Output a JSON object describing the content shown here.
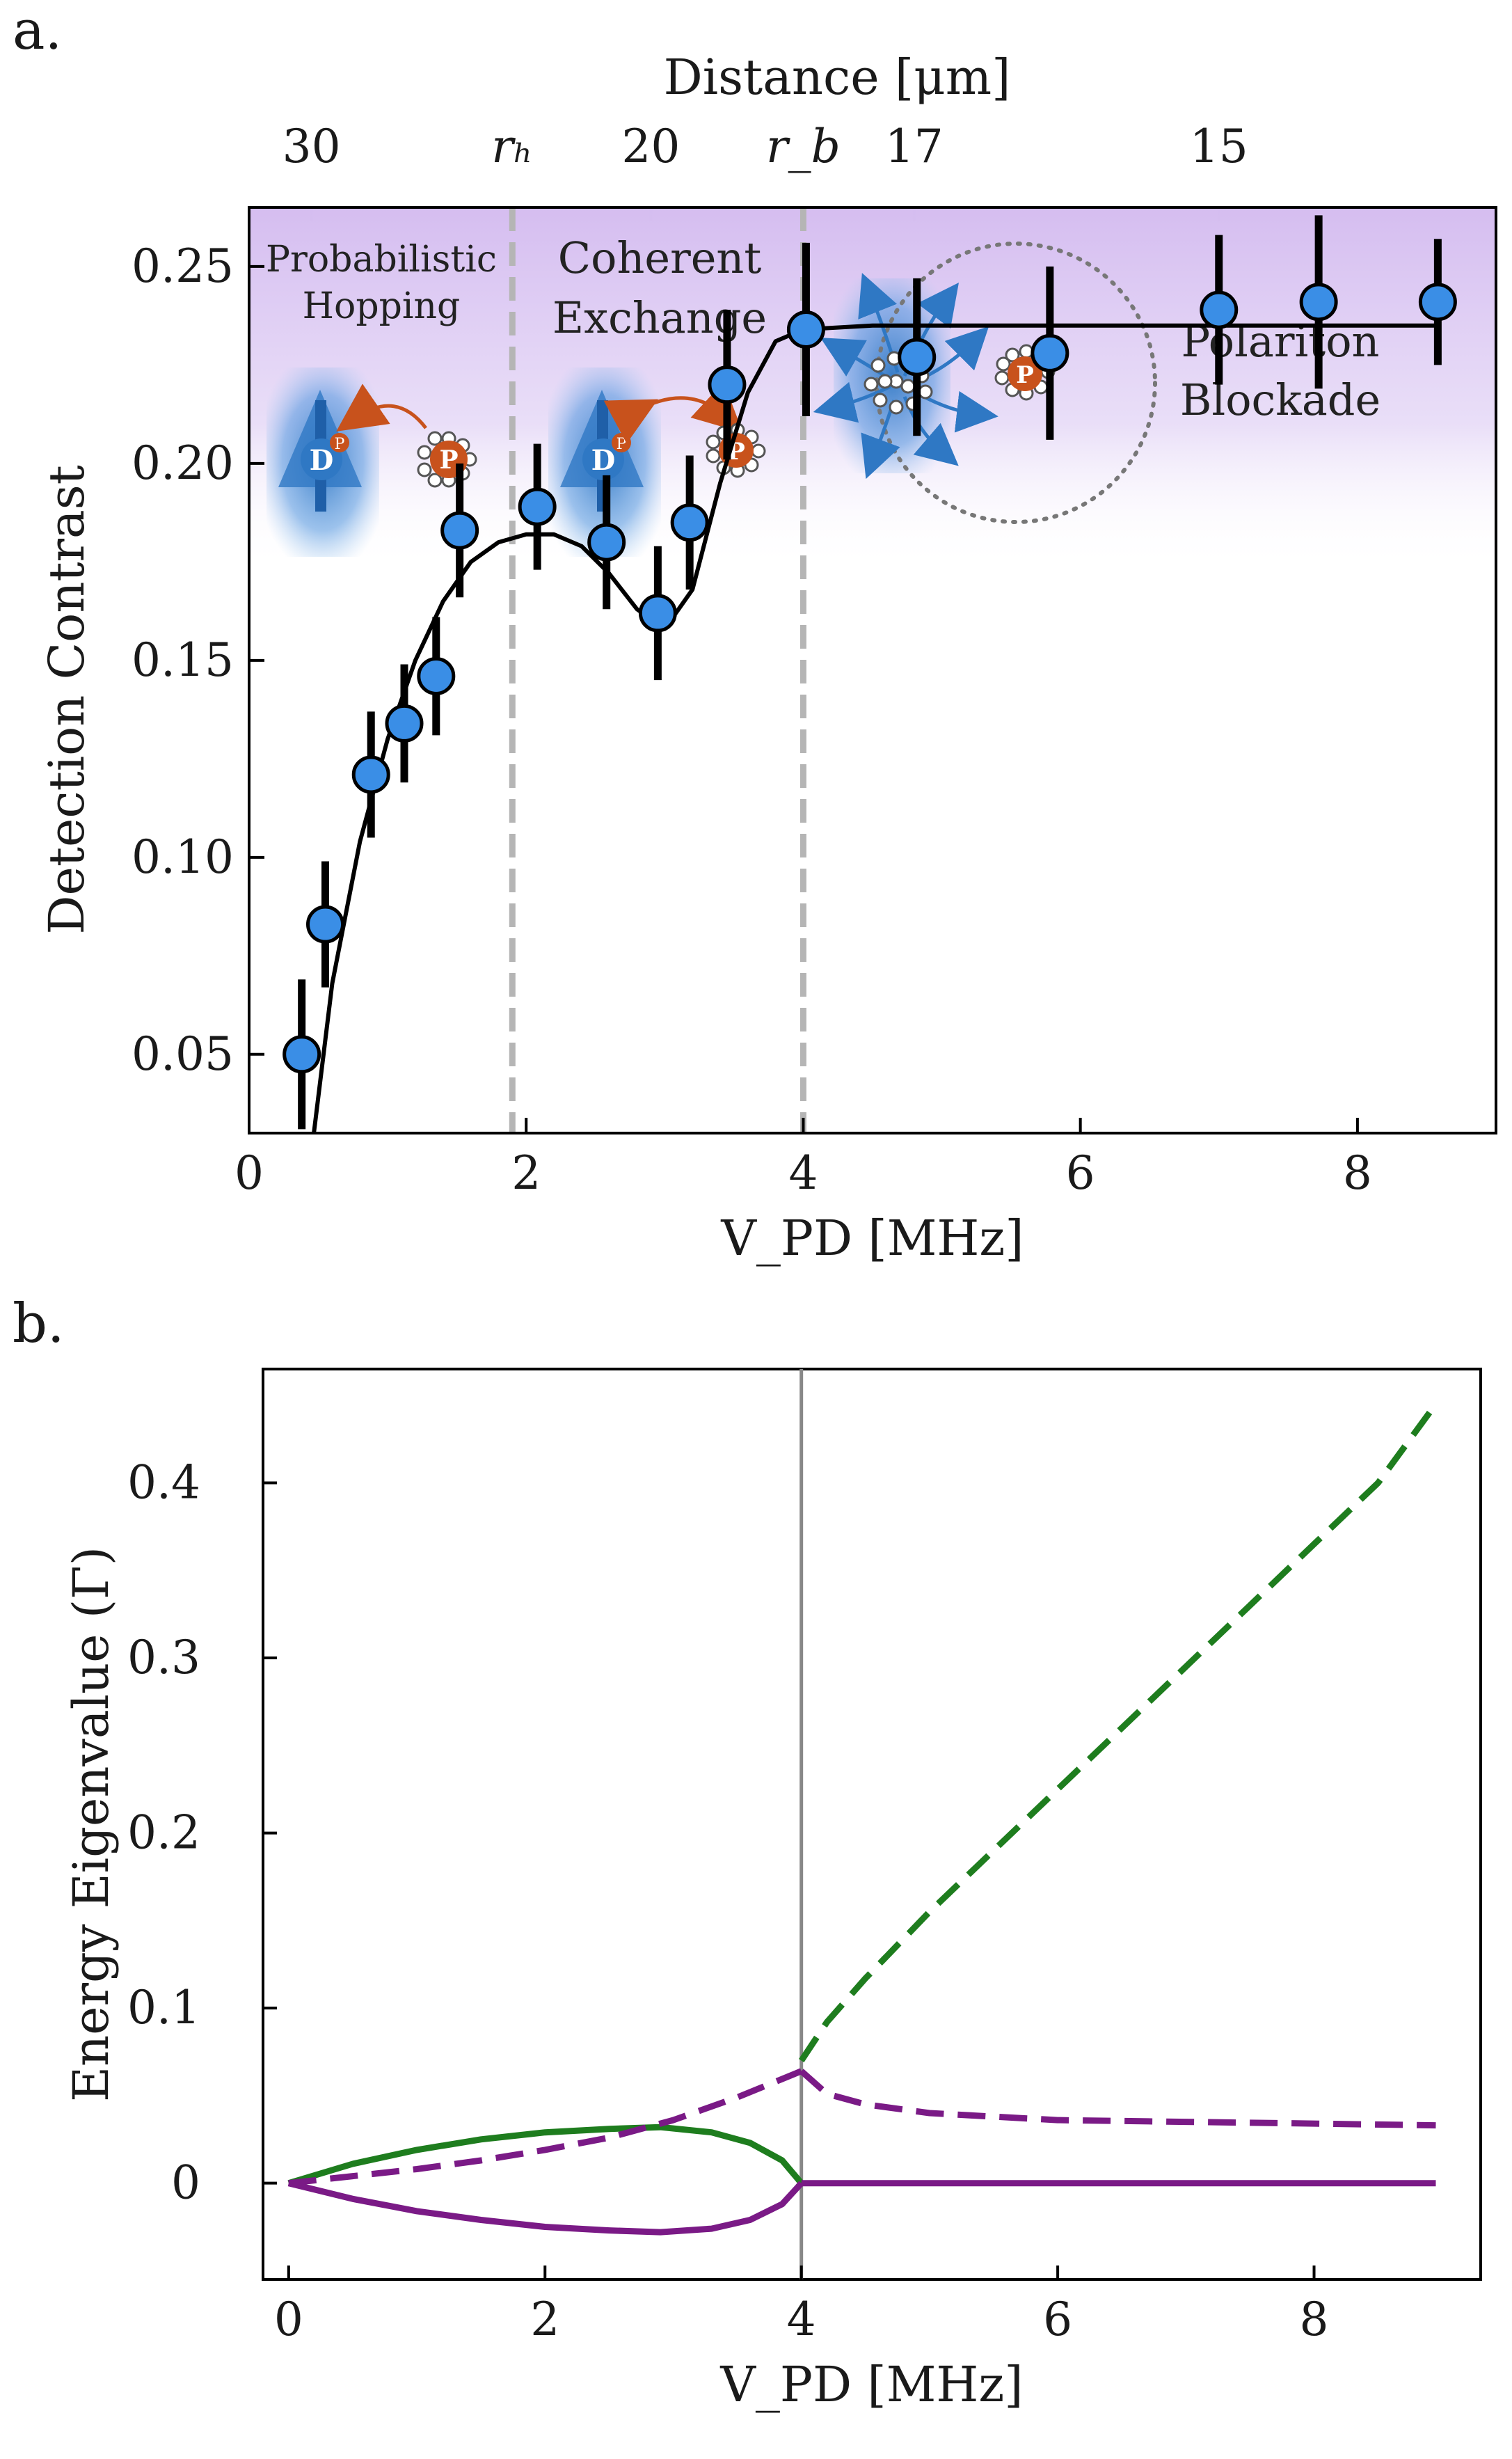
{
  "panel_a": {
    "label": "a.",
    "top_axis": {
      "label": "Distance [μm]",
      "tick_labels": [
        "30",
        "rₕ",
        "20",
        "r_b",
        "17",
        "15"
      ],
      "tick_values_mhz": [
        0.45,
        1.9,
        2.9,
        4.0,
        4.8,
        7.0
      ]
    },
    "regions": {
      "probabilistic_line1": "Probabilistic",
      "probabilistic_line2": "Hopping",
      "coherent_line1": "Coherent",
      "coherent_line2": "Exchange",
      "polariton_line1": "Polariton",
      "polariton_line2": "Blockade",
      "atom_d": "D",
      "atom_p": "P"
    },
    "colors": {
      "marker": "#3a8ee6",
      "region_shade": "#d9c6f2",
      "dashed_lines": "#b5b5b5",
      "atom_p": "#c8521c",
      "atom_d": "#2f78c4"
    }
  },
  "panel_b": {
    "label": "b.",
    "colors": {
      "green": "#1e7d1e",
      "purple": "#7a1a86",
      "vline": "#888888"
    }
  },
  "chart_data": [
    {
      "type": "scatter",
      "x": [
        0.38,
        0.55,
        0.88,
        1.12,
        1.35,
        1.52,
        2.08,
        2.58,
        2.95,
        3.18,
        3.45,
        4.02,
        4.82,
        5.78,
        7.0,
        7.72,
        8.58
      ],
      "y": [
        0.05,
        0.083,
        0.121,
        0.134,
        0.146,
        0.183,
        0.189,
        0.18,
        0.162,
        0.185,
        0.22,
        0.234,
        0.227,
        0.228,
        0.239,
        0.241,
        0.241
      ],
      "yerr": [
        0.019,
        0.016,
        0.016,
        0.015,
        0.015,
        0.017,
        0.016,
        0.017,
        0.017,
        0.017,
        0.019,
        0.022,
        0.02,
        0.022,
        0.019,
        0.022,
        0.016
      ],
      "fit_x": [
        0.45,
        0.6,
        0.8,
        1.0,
        1.2,
        1.4,
        1.6,
        1.8,
        2.0,
        2.2,
        2.4,
        2.6,
        2.8,
        3.0,
        3.2,
        3.4,
        3.6,
        3.8,
        4.0,
        4.5,
        6.0,
        8.6
      ],
      "fit_y": [
        0.025,
        0.068,
        0.104,
        0.13,
        0.15,
        0.165,
        0.175,
        0.18,
        0.182,
        0.182,
        0.179,
        0.172,
        0.163,
        0.158,
        0.168,
        0.195,
        0.218,
        0.231,
        0.234,
        0.235,
        0.235,
        0.235
      ],
      "fit_label": "",
      "dashed_vlines": [
        1.9,
        4.0
      ],
      "xlabel": "V_PD [MHz]",
      "ylabel": "Detection Contrast",
      "xlim": [
        0,
        9.0
      ],
      "ylim": [
        0.03,
        0.265
      ],
      "xticks": [
        0,
        2,
        4,
        6,
        8
      ],
      "yticks": [
        0.05,
        0.1,
        0.15,
        0.2,
        0.25
      ],
      "ytick_labels": [
        "0.05",
        "0.10",
        "0.15",
        "0.20",
        "0.25"
      ],
      "grid": false
    },
    {
      "type": "line",
      "xlabel": "V_PD [MHz]",
      "ylabel": "Energy Eigenvalue (Γ)",
      "xlim": [
        -0.2,
        9.3
      ],
      "ylim": [
        -0.055,
        0.465
      ],
      "xticks": [
        0,
        2,
        4,
        6,
        8
      ],
      "yticks": [
        0,
        0.1,
        0.2,
        0.3,
        0.4
      ],
      "ytick_labels": [
        "0",
        "0.1",
        "0.2",
        "0.3",
        "0.4"
      ],
      "vline": 4.0,
      "grid": false,
      "series": [
        {
          "color": "green",
          "style": "solid",
          "x": [
            0,
            0.5,
            1.0,
            1.5,
            2.0,
            2.5,
            2.9,
            3.3,
            3.6,
            3.85,
            4.0
          ],
          "y": [
            0,
            0.011,
            0.019,
            0.025,
            0.029,
            0.031,
            0.032,
            0.029,
            0.023,
            0.013,
            0.0
          ]
        },
        {
          "color": "purple",
          "style": "solid",
          "x": [
            0,
            0.5,
            1.0,
            1.5,
            2.0,
            2.5,
            2.9,
            3.3,
            3.6,
            3.85,
            4.0
          ],
          "y": [
            0,
            -0.009,
            -0.016,
            -0.021,
            -0.025,
            -0.027,
            -0.028,
            -0.026,
            -0.021,
            -0.012,
            0.0
          ]
        },
        {
          "color": "purple",
          "style": "solid",
          "x": [
            4.0,
            5.0,
            6.0,
            7.0,
            8.0,
            8.95
          ],
          "y": [
            0.0,
            0.0,
            0.0,
            0.0,
            0.0,
            0.0
          ]
        },
        {
          "color": "purple",
          "style": "dashed",
          "x": [
            0,
            0.5,
            1.0,
            1.5,
            2.0,
            2.5,
            3.0,
            3.5,
            4.0
          ],
          "y": [
            0,
            0.004,
            0.008,
            0.013,
            0.019,
            0.026,
            0.036,
            0.049,
            0.064
          ]
        },
        {
          "color": "purple",
          "style": "dashed",
          "x": [
            4.0,
            4.2,
            4.5,
            5.0,
            5.5,
            6.0,
            7.0,
            8.0,
            8.95
          ],
          "y": [
            0.064,
            0.051,
            0.045,
            0.04,
            0.038,
            0.036,
            0.035,
            0.034,
            0.033
          ]
        },
        {
          "color": "green",
          "style": "dashed",
          "x": [
            4.0,
            4.2,
            4.5,
            5.0,
            5.5,
            6.0,
            6.5,
            7.0,
            7.5,
            8.0,
            8.5,
            8.95
          ],
          "y": [
            0.07,
            0.092,
            0.117,
            0.155,
            0.19,
            0.225,
            0.26,
            0.295,
            0.33,
            0.365,
            0.4,
            0.445
          ]
        }
      ]
    }
  ]
}
